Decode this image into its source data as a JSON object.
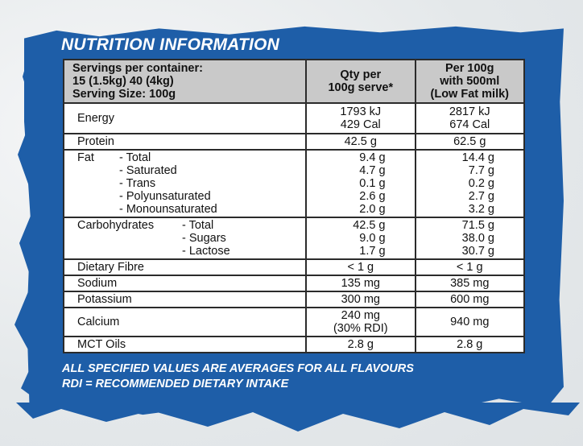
{
  "title": "NUTRITION INFORMATION",
  "header": {
    "col1_lines": [
      "Servings per container:",
      "15 (1.5kg) 40 (4kg)",
      "Serving Size: 100g"
    ],
    "col2_lines": [
      "Qty per",
      "100g serve*"
    ],
    "col3_lines": [
      "Per 100g",
      "with 500ml",
      "(Low Fat milk)"
    ]
  },
  "rows": {
    "energy": {
      "label": "Energy",
      "qty": [
        "1793 kJ",
        "429 Cal"
      ],
      "milk": [
        "2817 kJ",
        "674 Cal"
      ]
    },
    "protein": {
      "label": "Protein",
      "qty": "42.5 g",
      "milk": "62.5 g"
    },
    "fat": {
      "label": "Fat",
      "subs": [
        "- Total",
        "- Saturated",
        "- Trans",
        "- Polyunsaturated",
        "- Monounsaturated"
      ],
      "qty": [
        "9.4 g",
        "4.7 g",
        "0.1 g",
        "2.6 g",
        "2.0 g"
      ],
      "milk": [
        "14.4 g",
        "7.7 g",
        "0.2 g",
        "2.7 g",
        "3.2 g"
      ]
    },
    "carbs": {
      "label": "Carbohydrates",
      "subs": [
        "- Total",
        "- Sugars",
        "- Lactose"
      ],
      "qty": [
        "42.5 g",
        "9.0 g",
        "1.7 g"
      ],
      "milk": [
        "71.5 g",
        "38.0 g",
        "30.7 g"
      ]
    },
    "fibre": {
      "label": "Dietary Fibre",
      "qty": "< 1 g",
      "milk": "< 1 g"
    },
    "sodium": {
      "label": "Sodium",
      "qty": "135 mg",
      "milk": "385 mg"
    },
    "potassium": {
      "label": "Potassium",
      "qty": "300 mg",
      "milk": "600 mg"
    },
    "calcium": {
      "label": "Calcium",
      "qty": [
        "240 mg",
        "(30% RDI)"
      ],
      "milk": "940 mg"
    },
    "mct": {
      "label": "MCT Oils",
      "qty": "2.8 g",
      "milk": "2.8 g"
    }
  },
  "footer": [
    "ALL SPECIFIED VALUES ARE AVERAGES FOR ALL FLAVOURS",
    "RDI = RECOMMENDED DIETARY INTAKE"
  ],
  "colors": {
    "panel": "#1e5ea8",
    "header_bg": "#c9c9c9",
    "border": "#2b2b2b"
  }
}
